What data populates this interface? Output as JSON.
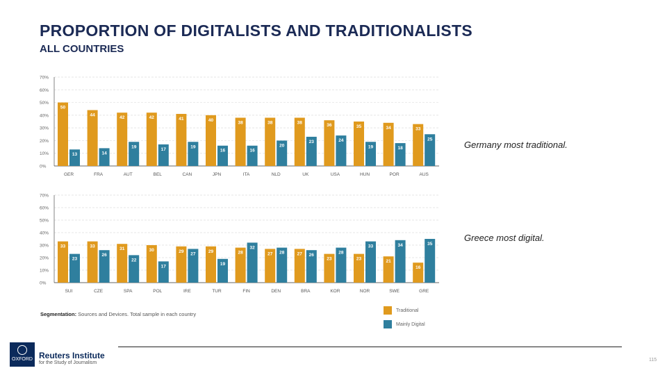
{
  "header": {
    "title": "PROPORTION OF DIGITALISTS AND TRADITIONALISTS",
    "subtitle": "ALL COUNTRIES"
  },
  "notes": [
    "Germany most traditional.",
    "Greece most digital."
  ],
  "segmentation": {
    "label": "Segmentation:",
    "text": " Sources and Devices. Total sample in each country"
  },
  "legend": [
    {
      "label": "Traditional",
      "color": "#e09a1e"
    },
    {
      "label": "Mainly Digital",
      "color": "#2f7f9e"
    }
  ],
  "footer": {
    "brand": "Reuters Institute",
    "brand_sub": "for the Study of Journalism",
    "logo_text": "OXFORD",
    "page_number": "115"
  },
  "chart_data": [
    {
      "type": "bar",
      "ylim": [
        0,
        70
      ],
      "yticks": [
        "0%",
        "10%",
        "20%",
        "30%",
        "40%",
        "50%",
        "60%",
        "70%"
      ],
      "grid": true,
      "categories": [
        "GER",
        "FRA",
        "AUT",
        "BEL",
        "CAN",
        "JPN",
        "ITA",
        "NLD",
        "UK",
        "USA",
        "HUN",
        "POR",
        "AUS"
      ],
      "series": [
        {
          "name": "Traditional",
          "values": [
            50,
            44,
            42,
            42,
            41,
            40,
            38,
            38,
            38,
            36,
            35,
            34,
            33
          ]
        },
        {
          "name": "Mainly Digital",
          "values": [
            13,
            14,
            19,
            17,
            19,
            16,
            16,
            20,
            23,
            24,
            19,
            18,
            25
          ]
        }
      ]
    },
    {
      "type": "bar",
      "ylim": [
        0,
        70
      ],
      "yticks": [
        "0%",
        "10%",
        "20%",
        "30%",
        "40%",
        "50%",
        "60%",
        "70%"
      ],
      "grid": true,
      "categories": [
        "SUI",
        "CZE",
        "SPA",
        "POL",
        "IRE",
        "TUR",
        "FIN",
        "DEN",
        "BRA",
        "KOR",
        "NOR",
        "SWE",
        "GRE"
      ],
      "series": [
        {
          "name": "Traditional",
          "values": [
            33,
            33,
            31,
            30,
            29,
            29,
            28,
            27,
            27,
            23,
            23,
            21,
            16
          ]
        },
        {
          "name": "Mainly Digital",
          "values": [
            23,
            26,
            22,
            17,
            27,
            19,
            32,
            28,
            26,
            28,
            33,
            34,
            35
          ]
        }
      ]
    }
  ]
}
